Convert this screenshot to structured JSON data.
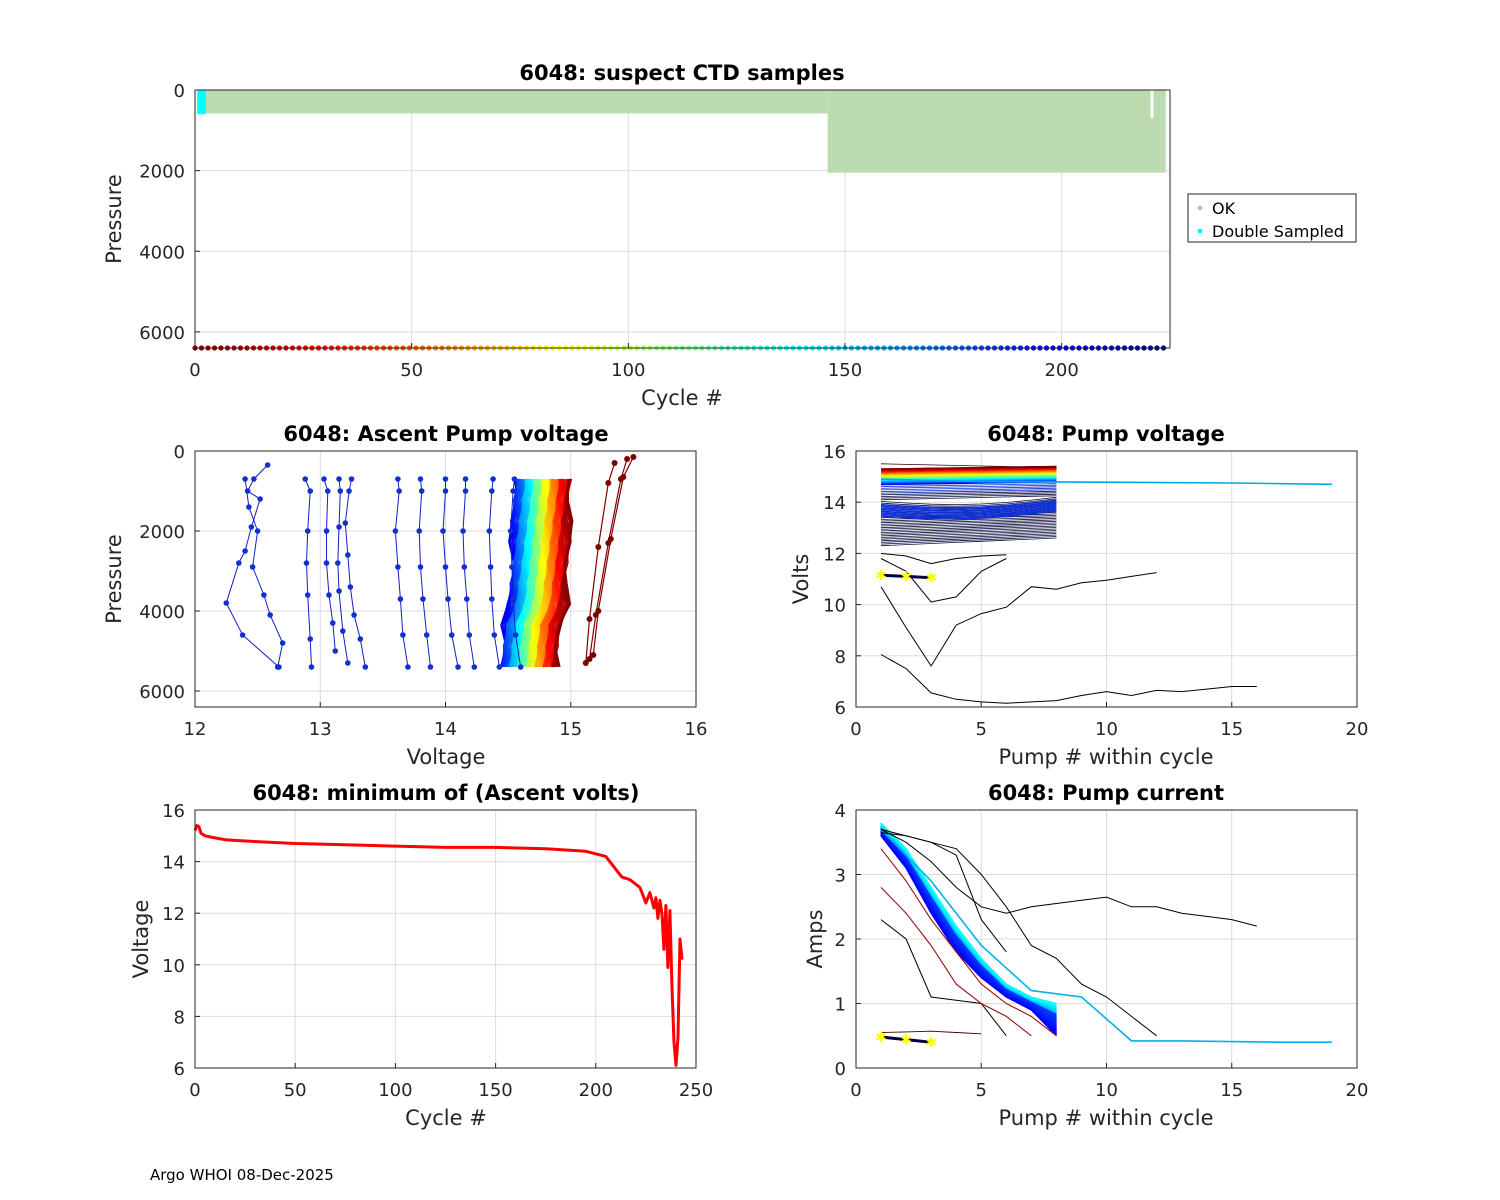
{
  "footer": "Argo WHOI 08-Dec-2025",
  "colors": {
    "ok_samples": "#bcdbb1",
    "double_sampled": "#00ffff",
    "ok_legend_marker": "#c0c0c0",
    "axis": "#262626",
    "grid": "#dcdcdc",
    "min_volts_line": "#ff0000",
    "yellow_marker": "#ffff00"
  },
  "chart_data": [
    {
      "id": "suspect",
      "type": "scatter",
      "title": "6048: suspect CTD samples",
      "xlabel": "Cycle #",
      "ylabel": "Pressure",
      "xlim": [
        0,
        225
      ],
      "ylim": [
        6400,
        0
      ],
      "xticks": [
        "0",
        "50",
        "100",
        "150",
        "200"
      ],
      "yticks": [
        "0",
        "2000",
        "4000",
        "6000"
      ],
      "legend": {
        "position": "outside-right",
        "entries": [
          "OK",
          "Double Sampled"
        ]
      },
      "series": [
        {
          "name": "OK",
          "cycles": [
            1,
            146
          ],
          "pressure": [
            0,
            580
          ]
        },
        {
          "name": "OK",
          "cycles": [
            146,
            224
          ],
          "pressure": [
            0,
            2050
          ]
        },
        {
          "name": "Double Sampled",
          "cycles": [
            0.5,
            2.5
          ],
          "pressure": [
            0,
            600
          ]
        }
      ],
      "cycle_color_strip": {
        "pressure": 6400,
        "cycles": [
          0,
          224
        ],
        "colormap": "jet-reversed"
      }
    },
    {
      "id": "ascent",
      "type": "line",
      "title": "6048: Ascent Pump voltage",
      "xlabel": "Voltage",
      "ylabel": "Pressure",
      "xlim": [
        12,
        16
      ],
      "ylim": [
        6400,
        0
      ],
      "xticks": [
        "12",
        "13",
        "14",
        "15",
        "16"
      ],
      "yticks": [
        "0",
        "2000",
        "4000",
        "6000"
      ],
      "series": [
        {
          "name": "cycle-a",
          "voltage": [
            12.58,
            12.47,
            12.42,
            12.52,
            12.45,
            12.4,
            12.35,
            12.25,
            12.38,
            12.67
          ],
          "pressure": [
            350,
            700,
            1000,
            1200,
            1900,
            2500,
            2800,
            3800,
            4600,
            5400
          ]
        },
        {
          "name": "cycle-b",
          "voltage": [
            12.4,
            12.43,
            12.5,
            12.46,
            12.55,
            12.6,
            12.7,
            12.66
          ],
          "pressure": [
            700,
            1400,
            2000,
            2900,
            3600,
            4100,
            4800,
            5400
          ]
        },
        {
          "name": "cycle-c",
          "voltage": [
            12.88,
            12.92,
            12.9,
            12.89,
            12.9,
            12.92,
            12.93
          ],
          "pressure": [
            700,
            1000,
            2000,
            2800,
            3600,
            4700,
            5400
          ]
        },
        {
          "name": "cycle-d",
          "voltage": [
            13.03,
            13.06,
            13.05,
            13.05,
            13.07,
            13.1,
            13.12
          ],
          "pressure": [
            700,
            1000,
            2000,
            2800,
            3600,
            4300,
            5000
          ]
        },
        {
          "name": "cycle-e",
          "voltage": [
            13.15,
            13.16,
            13.15,
            13.14,
            13.15,
            13.18,
            13.22
          ],
          "pressure": [
            700,
            1000,
            1900,
            2800,
            3500,
            4500,
            5300
          ]
        },
        {
          "name": "cycle-f",
          "voltage": [
            13.25,
            13.23,
            13.2,
            13.22,
            13.24,
            13.27,
            13.32,
            13.36
          ],
          "pressure": [
            700,
            1000,
            1800,
            2600,
            3400,
            4100,
            4700,
            5400
          ]
        },
        {
          "name": "cycle-g",
          "voltage": [
            13.62,
            13.63,
            13.6,
            13.62,
            13.64,
            13.66,
            13.7
          ],
          "pressure": [
            700,
            1000,
            2000,
            2900,
            3700,
            4600,
            5400
          ]
        },
        {
          "name": "cycle-h",
          "voltage": [
            13.8,
            13.81,
            13.79,
            13.8,
            13.82,
            13.85,
            13.88
          ],
          "pressure": [
            700,
            1000,
            2000,
            2900,
            3700,
            4600,
            5400
          ]
        },
        {
          "name": "cycle-i",
          "voltage": [
            14.0,
            14.0,
            13.98,
            14.0,
            14.02,
            14.05,
            14.1
          ],
          "pressure": [
            700,
            1000,
            2000,
            2900,
            3700,
            4600,
            5400
          ]
        },
        {
          "name": "cycle-j",
          "voltage": [
            14.16,
            14.16,
            14.14,
            14.15,
            14.17,
            14.19,
            14.23
          ],
          "pressure": [
            700,
            1000,
            2000,
            2900,
            3700,
            4600,
            5400
          ]
        },
        {
          "name": "cycle-k",
          "voltage": [
            14.38,
            14.37,
            14.35,
            14.36,
            14.37,
            14.39,
            14.43
          ],
          "pressure": [
            700,
            1000,
            2000,
            2900,
            3700,
            4600,
            5400
          ]
        },
        {
          "name": "cycle-l",
          "voltage": [
            14.55,
            14.54,
            14.52,
            14.53,
            14.54,
            14.56,
            14.6
          ],
          "pressure": [
            700,
            1000,
            2000,
            2900,
            3700,
            4600,
            5400
          ]
        }
      ],
      "band": {
        "cycles": 140,
        "voltage_top": [
          14.55,
          15.0
        ],
        "voltage_bottom": [
          14.5,
          14.95
        ],
        "pressure": [
          700,
          5400
        ],
        "colormap": "jet"
      },
      "late_cycles": [
        {
          "voltage": [
            15.35,
            15.3,
            15.22,
            15.15,
            15.12
          ],
          "pressure": [
            300,
            800,
            2400,
            4200,
            5300
          ]
        },
        {
          "voltage": [
            15.45,
            15.4,
            15.3,
            15.2,
            15.15
          ],
          "pressure": [
            200,
            700,
            2300,
            4100,
            5200
          ]
        },
        {
          "voltage": [
            15.5,
            15.42,
            15.32,
            15.22,
            15.18
          ],
          "pressure": [
            150,
            650,
            2200,
            4000,
            5100
          ]
        }
      ]
    },
    {
      "id": "pumpv",
      "type": "line",
      "title": "6048: Pump voltage",
      "xlabel": "Pump # within cycle",
      "ylabel": "Volts",
      "xlim": [
        0,
        20
      ],
      "ylim": [
        6,
        16
      ],
      "xticks": [
        "0",
        "5",
        "10",
        "15",
        "20"
      ],
      "yticks": [
        "6",
        "8",
        "10",
        "12",
        "14",
        "16"
      ],
      "band": {
        "cycles": 120,
        "pumps": [
          1,
          8
        ],
        "volts_start": [
          14.7,
          15.3
        ],
        "volts_end": [
          14.8,
          15.4
        ],
        "colormap": "jet"
      },
      "blue_group": {
        "cycles": 40,
        "pumps": [
          1,
          8
        ],
        "volts_start": [
          12.3,
          14.8
        ],
        "volts_end": [
          12.6,
          14.9
        ]
      },
      "series": [
        {
          "name": "long-cyan",
          "pumps": [
            1,
            5,
            10,
            15,
            19
          ],
          "volts": [
            14.9,
            14.8,
            14.78,
            14.75,
            14.7
          ]
        },
        {
          "name": "low-1",
          "pumps": [
            1,
            2,
            3,
            4,
            5,
            6,
            7,
            8,
            9,
            10,
            11,
            12,
            13,
            14,
            15,
            16
          ],
          "volts": [
            8.05,
            7.5,
            6.55,
            6.3,
            6.2,
            6.15,
            6.2,
            6.25,
            6.45,
            6.6,
            6.45,
            6.65,
            6.6,
            6.7,
            6.8,
            6.8
          ]
        },
        {
          "name": "low-2",
          "pumps": [
            1,
            2,
            3,
            4,
            5,
            6,
            7,
            8,
            9,
            10,
            11,
            12
          ],
          "volts": [
            10.7,
            9.1,
            7.6,
            9.2,
            9.65,
            9.9,
            10.7,
            10.6,
            10.85,
            10.95,
            11.1,
            11.25
          ]
        },
        {
          "name": "low-3",
          "pumps": [
            1,
            2,
            3,
            4,
            5,
            6
          ],
          "volts": [
            11.8,
            11.3,
            10.1,
            10.3,
            11.3,
            11.8
          ]
        },
        {
          "name": "low-4",
          "pumps": [
            1,
            2,
            3,
            4,
            5,
            6
          ],
          "volts": [
            12.0,
            11.9,
            11.6,
            11.8,
            11.9,
            11.95
          ]
        }
      ],
      "yellow_markers": {
        "pumps": [
          1,
          2,
          3
        ],
        "volts": [
          11.15,
          11.1,
          11.05
        ]
      }
    },
    {
      "id": "minv",
      "type": "line",
      "title": "6048: minimum of (Ascent volts)",
      "xlabel": "Cycle #",
      "ylabel": "Voltage",
      "xlim": [
        0,
        250
      ],
      "ylim": [
        6,
        16
      ],
      "xticks": [
        "0",
        "50",
        "100",
        "150",
        "200",
        "250"
      ],
      "yticks": [
        "6",
        "8",
        "10",
        "12",
        "14",
        "16"
      ],
      "series": [
        {
          "name": "min-ascent-volts",
          "cycle": [
            0,
            1,
            2,
            3,
            5,
            8,
            15,
            25,
            50,
            75,
            100,
            125,
            150,
            175,
            195,
            205,
            210,
            213,
            217,
            222,
            225,
            227,
            229,
            230,
            231,
            232,
            233,
            234,
            235,
            236,
            237,
            238,
            239,
            240,
            241,
            242,
            243
          ],
          "volts": [
            15.2,
            15.4,
            15.35,
            15.1,
            15.0,
            14.95,
            14.85,
            14.8,
            14.7,
            14.65,
            14.6,
            14.55,
            14.55,
            14.5,
            14.4,
            14.2,
            13.7,
            13.4,
            13.3,
            13.0,
            12.4,
            12.8,
            12.2,
            12.6,
            11.8,
            12.5,
            12.0,
            10.6,
            12.3,
            9.9,
            12.1,
            9.1,
            7.0,
            6.1,
            7.2,
            11.0,
            10.2
          ]
        }
      ]
    },
    {
      "id": "pumpc",
      "type": "line",
      "title": "6048: Pump current",
      "xlabel": "Pump # within cycle",
      "ylabel": "Amps",
      "xlim": [
        0,
        20
      ],
      "ylim": [
        0,
        4
      ],
      "xticks": [
        "0",
        "5",
        "10",
        "15",
        "20"
      ],
      "yticks": [
        "0",
        "1",
        "2",
        "3",
        "4"
      ],
      "band": {
        "cycles": 80,
        "pumps": [
          1,
          2,
          3,
          4,
          5,
          6,
          7,
          8
        ],
        "amps_top": [
          3.8,
          3.4,
          2.8,
          2.2,
          1.7,
          1.3,
          1.1,
          1.0
        ],
        "amps_bottom": [
          3.6,
          3.1,
          2.4,
          1.8,
          1.4,
          1.1,
          0.9,
          0.5
        ],
        "colormap": "blue-cyan"
      },
      "series": [
        {
          "name": "cyan-long",
          "pumps": [
            1,
            3,
            5,
            7,
            9,
            11,
            13,
            15,
            17,
            19
          ],
          "amps": [
            3.7,
            2.9,
            1.9,
            1.2,
            1.1,
            0.42,
            0.42,
            0.41,
            0.4,
            0.4
          ]
        },
        {
          "name": "black-1",
          "pumps": [
            1,
            2,
            3,
            4,
            5,
            6,
            7,
            8,
            9,
            10,
            11,
            12,
            13,
            14,
            15,
            16
          ],
          "amps": [
            3.7,
            3.5,
            3.2,
            2.8,
            2.5,
            2.4,
            2.5,
            2.55,
            2.6,
            2.65,
            2.5,
            2.5,
            2.4,
            2.35,
            2.3,
            2.2
          ]
        },
        {
          "name": "black-2",
          "pumps": [
            1,
            2,
            3,
            4,
            5,
            6,
            7,
            8,
            9,
            10,
            11,
            12
          ],
          "amps": [
            3.65,
            3.6,
            3.5,
            3.4,
            3.0,
            2.5,
            1.9,
            1.7,
            1.3,
            1.1,
            0.8,
            0.5
          ]
        },
        {
          "name": "black-3",
          "pumps": [
            1,
            2,
            3,
            4,
            5,
            6
          ],
          "amps": [
            3.7,
            3.6,
            3.5,
            3.3,
            2.3,
            1.8
          ]
        },
        {
          "name": "black-4",
          "pumps": [
            1,
            2,
            3,
            4,
            5,
            6
          ],
          "amps": [
            2.3,
            2.0,
            1.1,
            1.05,
            1.0,
            0.5
          ]
        },
        {
          "name": "red-1",
          "pumps": [
            1,
            2,
            3,
            4,
            5,
            6,
            7
          ],
          "amps": [
            2.8,
            2.4,
            1.9,
            1.3,
            1.0,
            0.8,
            0.5
          ]
        },
        {
          "name": "red-2",
          "pumps": [
            1,
            2,
            3,
            4,
            5,
            6,
            7,
            8
          ],
          "amps": [
            3.4,
            2.9,
            2.3,
            1.8,
            1.3,
            1.0,
            0.8,
            0.5
          ]
        },
        {
          "name": "flat-1",
          "pumps": [
            1,
            2,
            3,
            4,
            5
          ],
          "amps": [
            0.55,
            0.56,
            0.57,
            0.55,
            0.53
          ]
        }
      ],
      "yellow_markers": {
        "pumps": [
          1,
          2,
          3
        ],
        "amps": [
          0.48,
          0.44,
          0.4
        ]
      }
    }
  ]
}
